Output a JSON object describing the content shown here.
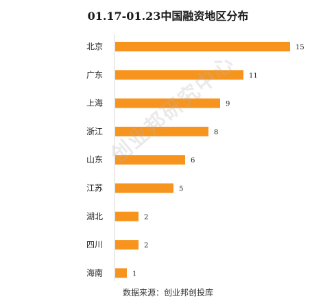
{
  "chart_data": {
    "type": "bar",
    "orientation": "horizontal",
    "title": "01.17-01.23中国融资地区分布",
    "categories": [
      "北京",
      "广东",
      "上海",
      "浙江",
      "山东",
      "江苏",
      "湖北",
      "四川",
      "海南"
    ],
    "values": [
      15,
      11,
      9,
      8,
      6,
      5,
      2,
      2,
      1
    ],
    "xlim": [
      0,
      15
    ],
    "grid": false,
    "bar_color": "#F7941D"
  },
  "watermark": "创业邦研究中心",
  "source": "数据来源：创业邦创投库"
}
